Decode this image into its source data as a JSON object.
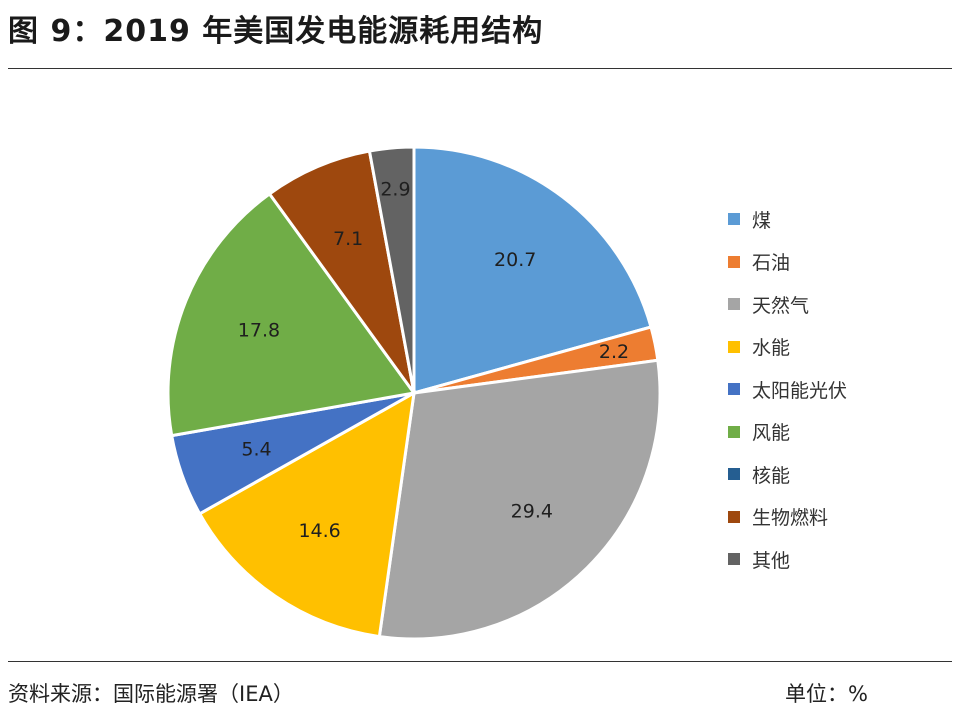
{
  "header": {
    "title": "图 9：2019  年美国发电能源耗用结构"
  },
  "footer": {
    "source": "资料来源：国际能源署（IEA）",
    "unit": "单位：%"
  },
  "chart_data": {
    "type": "pie",
    "title": "2019 年美国发电能源耗用结构",
    "unit": "%",
    "legend_position": "right",
    "slices": [
      {
        "label": "煤",
        "value": 20.7,
        "color": "#5b9bd5",
        "value_label": "20.7"
      },
      {
        "label": "石油",
        "value": 2.2,
        "color": "#ed7d31",
        "value_label": "2.2"
      },
      {
        "label": "天然气",
        "value": 29.4,
        "color": "#a5a5a5",
        "value_label": "29.4"
      },
      {
        "label": "水能",
        "value": 14.6,
        "color": "#ffc000",
        "value_label": "14.6"
      },
      {
        "label": "太阳能光伏",
        "value": 5.4,
        "color": "#4472c4",
        "value_label": "5.4"
      },
      {
        "label": "风能",
        "value": 17.8,
        "color": "#70ad47",
        "value_label": "17.8"
      },
      {
        "label": "核能",
        "value": 0,
        "color": "#255e91",
        "value_label": ""
      },
      {
        "label": "生物燃料",
        "value": 7.1,
        "color": "#9e480e",
        "value_label": "7.1"
      },
      {
        "label": "其他",
        "value": 2.9,
        "color": "#636363",
        "value_label": "2.9"
      }
    ]
  }
}
